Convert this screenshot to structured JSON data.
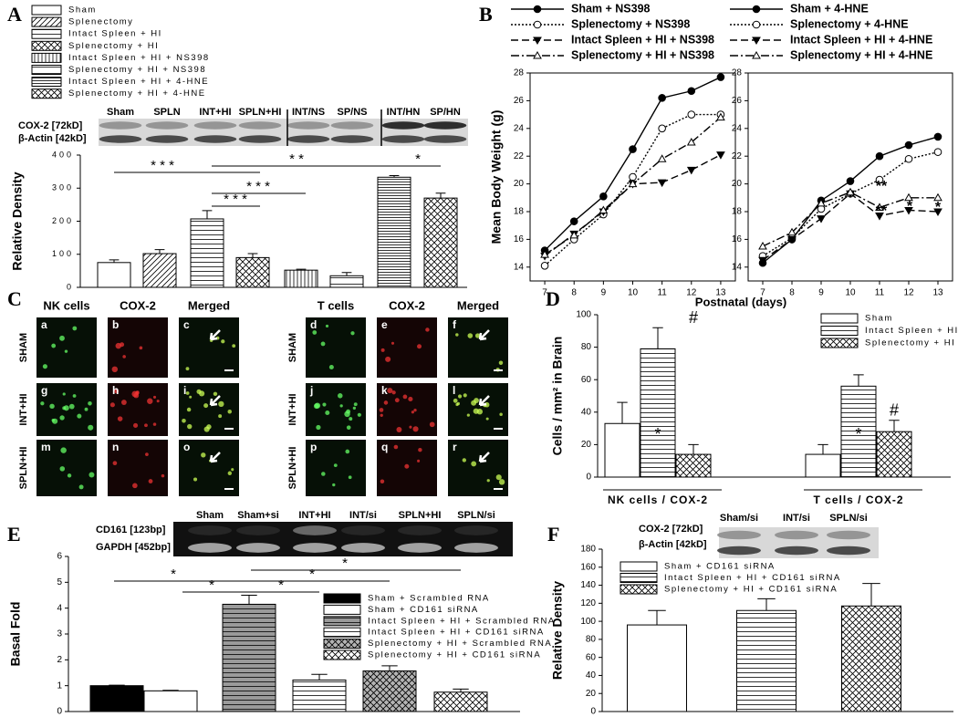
{
  "panels": [
    "A",
    "B",
    "C",
    "D",
    "E",
    "F"
  ],
  "blots": [
    {
      "lanes": [
        "Sham",
        "SPLN",
        "INT+HI",
        "SPLN+HI",
        "INT/NS",
        "SP/NS",
        "INT/HN",
        "SP/HN"
      ],
      "rows": [
        "COX-2 [72kD]",
        "β-Actin [42kD]"
      ]
    },
    {
      "lanes": [
        "Sham",
        "Sham+si",
        "INT+HI",
        "INT/si",
        "SPLN+HI",
        "SPLN/si"
      ],
      "rows": [
        "CD161 [123bp]",
        "GAPDH [452bp]"
      ]
    },
    {
      "lanes": [
        "Sham/si",
        "INT/si",
        "SPLN/si"
      ],
      "rows": [
        "COX-2 [72kD]",
        "β-Actin [42kD]"
      ]
    }
  ],
  "micrographs": [
    {
      "columns": [
        "NK cells",
        "COX-2",
        "Merged"
      ],
      "rows": [
        "SHAM",
        "INT+HI",
        "SPLN+HI"
      ],
      "letters": [
        [
          "a",
          "b",
          "c"
        ],
        [
          "g",
          "h",
          "i"
        ],
        [
          "m",
          "n",
          "o"
        ]
      ]
    },
    {
      "columns": [
        "T cells",
        "COX-2",
        "Merged"
      ],
      "rows": [
        "SHAM",
        "INT+HI",
        "SPLN+HI"
      ],
      "letters": [
        [
          "d",
          "e",
          "f"
        ],
        [
          "j",
          "k",
          "l"
        ],
        [
          "p",
          "q",
          "r"
        ]
      ]
    }
  ],
  "chart_data": [
    {
      "type": "bar",
      "y_label": "Relative Density",
      "ylim": [
        0,
        400
      ],
      "yticks": [
        0,
        100,
        200,
        300,
        400
      ],
      "series": [
        {
          "name": "Sham",
          "color": "#ffffff",
          "hatch": "none",
          "values": [
            75
          ],
          "errors": [
            8
          ]
        },
        {
          "name": "Splenectomy",
          "color": "#ffffff",
          "hatch": "diagonal",
          "values": [
            102
          ],
          "errors": [
            12
          ]
        },
        {
          "name": "Intact Spleen + HI",
          "color": "#ffffff",
          "hatch": "horizontal",
          "values": [
            207
          ],
          "errors": [
            25
          ]
        },
        {
          "name": "Splenectomy + HI",
          "color": "#ffffff",
          "hatch": "crosshatch",
          "values": [
            90
          ],
          "errors": [
            12
          ]
        },
        {
          "name": "Intact Spleen + HI + NS398",
          "color": "#ffffff",
          "hatch": "vertical",
          "values": [
            52
          ],
          "errors": [
            3
          ]
        },
        {
          "name": "Splenectomy + HI + NS398",
          "color": "#ffffff",
          "hatch": "horizontal-wide",
          "values": [
            35
          ],
          "errors": [
            10
          ]
        },
        {
          "name": "Intact Spleen + HI + 4-HNE",
          "color": "#ffffff",
          "hatch": "horizontal-dense",
          "values": [
            333
          ],
          "errors": [
            5
          ]
        },
        {
          "name": "Splenectomy + HI + 4-HNE",
          "color": "#ffffff",
          "hatch": "crosshatch",
          "values": [
            270
          ],
          "errors": [
            15
          ]
        }
      ],
      "annotations": [
        "* * *",
        "* * *",
        "* * *",
        "* *",
        "*"
      ]
    },
    {
      "type": "line",
      "y_label": "Mean Body Weight (g)",
      "x_label": "Postnatal (days)",
      "x": [
        7,
        8,
        9,
        10,
        11,
        12,
        13
      ],
      "xlim": [
        6.5,
        13.5
      ],
      "xticks": [
        7,
        8,
        9,
        10,
        11,
        12,
        13
      ],
      "ylim": [
        13,
        28
      ],
      "yticks": [
        14,
        16,
        18,
        20,
        22,
        24,
        26,
        28
      ],
      "series": [
        {
          "name": "Sham + NS398",
          "color": "#000000",
          "dash": "solid",
          "marker": "circle-filled",
          "values": [
            15.2,
            17.3,
            19.1,
            22.5,
            26.2,
            26.7,
            27.7
          ]
        },
        {
          "name": "Splenectomy + NS398",
          "color": "#000000",
          "dash": "dotted",
          "marker": "circle-open",
          "values": [
            14.1,
            16.0,
            17.8,
            20.5,
            24.0,
            25.0,
            25.0
          ]
        },
        {
          "name": "Intact Spleen + HI + NS398",
          "color": "#000000",
          "dash": "dashed",
          "marker": "triangle-down-filled",
          "values": [
            14.8,
            16.4,
            18.0,
            20.0,
            20.1,
            21.0,
            22.1
          ]
        },
        {
          "name": "Splenectomy + HI + NS398",
          "color": "#000000",
          "dash": "dashdot",
          "marker": "triangle-up-open",
          "values": [
            14.9,
            16.3,
            18.1,
            20.0,
            21.8,
            23.0,
            24.8
          ]
        }
      ]
    },
    {
      "type": "line",
      "x": [
        7,
        8,
        9,
        10,
        11,
        12,
        13
      ],
      "xlim": [
        6.5,
        13.5
      ],
      "xticks": [
        7,
        8,
        9,
        10,
        11,
        12,
        13
      ],
      "ylim": [
        13,
        28
      ],
      "yticks": [
        14,
        16,
        18,
        20,
        22,
        24,
        26,
        28
      ],
      "series": [
        {
          "name": "Sham + 4-HNE",
          "color": "#000000",
          "dash": "solid",
          "marker": "circle-filled",
          "values": [
            14.3,
            16.0,
            18.8,
            20.2,
            22.0,
            22.8,
            23.4
          ]
        },
        {
          "name": "Splenectomy + 4-HNE",
          "color": "#000000",
          "dash": "dotted",
          "marker": "circle-open",
          "values": [
            14.8,
            16.1,
            18.2,
            19.3,
            20.3,
            21.8,
            22.3
          ]
        },
        {
          "name": "Intact Spleen + HI + 4-HNE",
          "color": "#000000",
          "dash": "dashed",
          "marker": "triangle-down-filled",
          "values": [
            14.5,
            16.0,
            17.5,
            19.3,
            17.7,
            18.1,
            18.0
          ]
        },
        {
          "name": "Splenectomy + HI + 4-HNE",
          "color": "#000000",
          "dash": "dashdot",
          "marker": "triangle-up-open",
          "values": [
            15.5,
            16.5,
            18.6,
            19.4,
            18.3,
            19.0,
            19.0
          ]
        }
      ],
      "annotations": [
        "**",
        "**",
        "*",
        "*"
      ]
    },
    {
      "type": "bar",
      "categories": [
        "NK cells / COX-2",
        "T cells / COX-2"
      ],
      "y_label": "Cells / mm² in Brain",
      "ylim": [
        0,
        100
      ],
      "yticks": [
        0,
        20,
        40,
        60,
        80,
        100
      ],
      "series": [
        {
          "name": "Sham",
          "color": "#ffffff",
          "hatch": "none",
          "values": [
            33,
            14
          ],
          "errors": [
            13,
            6
          ]
        },
        {
          "name": "Intact Spleen + HI",
          "color": "#ffffff",
          "hatch": "horizontal",
          "values": [
            79,
            56
          ],
          "errors": [
            13,
            7
          ]
        },
        {
          "name": "Splenectomy + HI",
          "color": "#ffffff",
          "hatch": "crosshatch",
          "values": [
            14,
            28
          ],
          "errors": [
            6,
            7
          ]
        }
      ],
      "annotations": [
        "*",
        "#",
        "*",
        "#"
      ]
    },
    {
      "type": "bar",
      "y_label": "Basal Fold",
      "ylim": [
        0,
        6
      ],
      "yticks": [
        0,
        1,
        2,
        3,
        4,
        5,
        6
      ],
      "series": [
        {
          "name": "Sham + Scrambled RNA",
          "color": "#000000",
          "hatch": "none",
          "values": [
            1.0
          ],
          "errors": [
            0.02
          ]
        },
        {
          "name": "Sham + CD161 siRNA",
          "color": "#ffffff",
          "hatch": "none",
          "values": [
            0.8
          ],
          "errors": [
            0.02
          ]
        },
        {
          "name": "Intact Spleen + HI + Scrambled RNA",
          "color": "#9a9a9a",
          "hatch": "horizontal",
          "values": [
            4.15
          ],
          "errors": [
            0.35
          ]
        },
        {
          "name": "Intact Spleen + HI + CD161 siRNA",
          "color": "#ffffff",
          "hatch": "horizontal",
          "values": [
            1.22
          ],
          "errors": [
            0.22
          ]
        },
        {
          "name": "Splenectomy + HI + Scrambled RNA",
          "color": "#b4b4b4",
          "hatch": "crosshatch",
          "values": [
            1.57
          ],
          "errors": [
            0.2
          ]
        },
        {
          "name": "Splenectomy + HI + CD161 siRNA",
          "color": "#ffffff",
          "hatch": "crosshatch",
          "values": [
            0.75
          ],
          "errors": [
            0.12
          ]
        }
      ],
      "annotations": [
        "*",
        "*",
        "*",
        "*",
        "*"
      ]
    },
    {
      "type": "bar",
      "y_label": "Relative Density",
      "ylim": [
        0,
        180
      ],
      "yticks": [
        0,
        20,
        40,
        60,
        80,
        100,
        120,
        140,
        160,
        180
      ],
      "series": [
        {
          "name": "Sham + CD161 siRNA",
          "color": "#ffffff",
          "hatch": "none",
          "values": [
            96
          ],
          "errors": [
            16
          ]
        },
        {
          "name": "Intact Spleen + HI + CD161 siRNA",
          "color": "#ffffff",
          "hatch": "horizontal",
          "values": [
            112
          ],
          "errors": [
            13
          ]
        },
        {
          "name": "Splenectomy + HI + CD161 siRNA",
          "color": "#ffffff",
          "hatch": "crosshatch",
          "values": [
            117
          ],
          "errors": [
            25
          ]
        }
      ]
    }
  ]
}
